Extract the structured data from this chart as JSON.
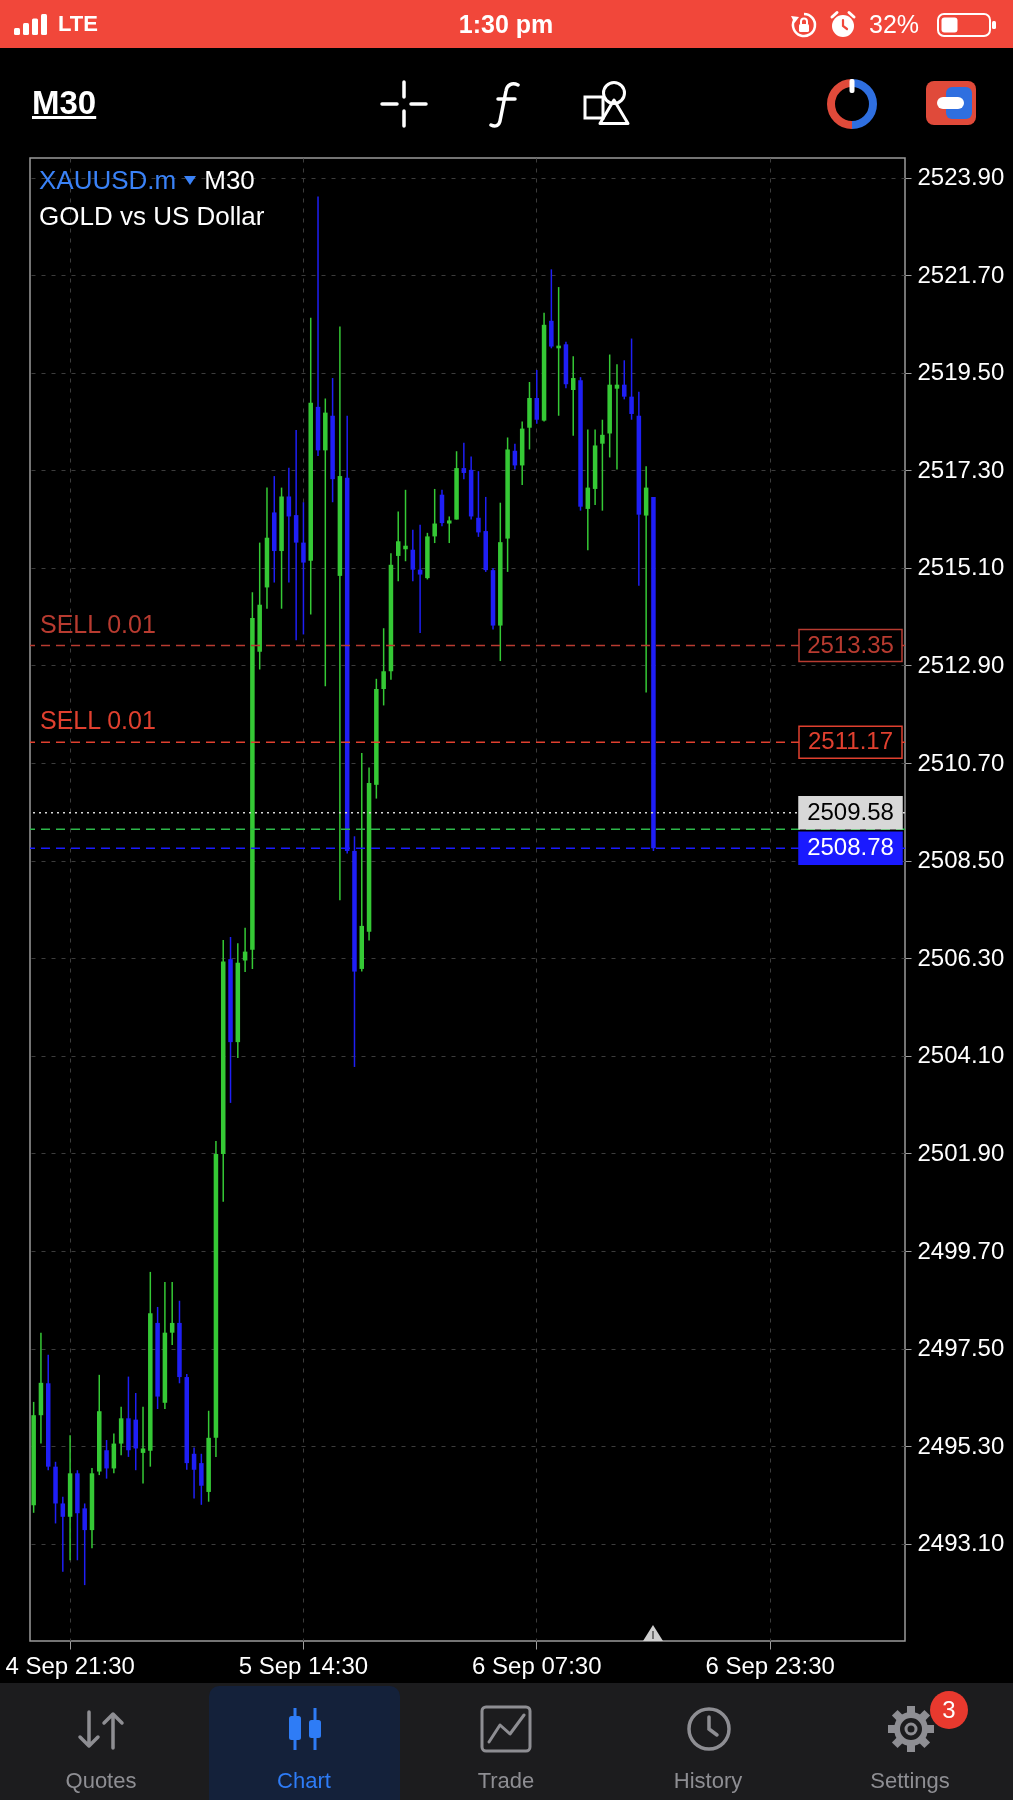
{
  "chart_data": {
    "type": "candlestick",
    "title": "XAUUSD.m",
    "subtitle": "GOLD vs US Dollar",
    "categories": [
      null,
      null,
      null,
      null,
      null,
      "4 Sep 21:30",
      null,
      null,
      null,
      null,
      null,
      null,
      null,
      null,
      null,
      null,
      null,
      null,
      null,
      null,
      null,
      null,
      null,
      null,
      null,
      null,
      null,
      null,
      null,
      null,
      null,
      null,
      null,
      null,
      null,
      null,
      null,
      "5 Sep 14:30",
      null,
      null,
      null,
      null,
      null,
      null,
      null,
      null,
      null,
      null,
      null,
      null,
      null,
      null,
      null,
      null,
      null,
      null,
      null,
      null,
      null,
      null,
      null,
      null,
      null,
      null,
      null,
      null,
      null,
      null,
      null,
      "6 Sep 07:30",
      null,
      null,
      null,
      null,
      null,
      null,
      null,
      null,
      null,
      null,
      null,
      null,
      null,
      null,
      null,
      null,
      null,
      null,
      null,
      null,
      null,
      null,
      null,
      null,
      null,
      null,
      null,
      null,
      null,
      null,
      null,
      "6 Sep 23:30",
      null,
      null,
      null,
      null,
      null,
      null,
      null,
      null,
      null,
      null,
      null,
      null,
      null,
      null,
      null,
      null,
      null,
      null
    ],
    "ohlc": [
      [
        2493.97,
        2496.3,
        2493.8,
        2496.0
      ],
      [
        2496.0,
        2497.86,
        2495.36,
        2496.73
      ],
      [
        2496.72,
        2497.36,
        2494.76,
        2494.84
      ],
      [
        2494.84,
        2494.95,
        2493.56,
        2494.01
      ],
      [
        2494.01,
        2494.16,
        2492.47,
        2493.71
      ],
      [
        2493.71,
        2495.55,
        2492.73,
        2494.69
      ],
      [
        2494.69,
        2494.76,
        2492.73,
        2493.79
      ],
      [
        2493.9,
        2494.01,
        2492.17,
        2493.41
      ],
      [
        2493.41,
        2494.81,
        2493.0,
        2494.69
      ],
      [
        2494.73,
        2496.91,
        2494.65,
        2496.09
      ],
      [
        2495.21,
        2495.44,
        2494.57,
        2494.8
      ],
      [
        2494.8,
        2495.59,
        2494.69,
        2495.36
      ],
      [
        2495.36,
        2496.19,
        2495.1,
        2495.93
      ],
      [
        2495.93,
        2496.87,
        2495.06,
        2495.21
      ],
      [
        2495.9,
        2496.5,
        2494.76,
        2495.25
      ],
      [
        2495.15,
        2496.19,
        2494.46,
        2495.25
      ],
      [
        2495.2,
        2499.23,
        2494.84,
        2498.3
      ],
      [
        2498.08,
        2498.44,
        2496.14,
        2496.42
      ],
      [
        2496.28,
        2499.0,
        2496.14,
        2497.86
      ],
      [
        2497.86,
        2499.0,
        2497.58,
        2498.08
      ],
      [
        2498.08,
        2498.58,
        2496.72,
        2496.86
      ],
      [
        2496.86,
        2496.93,
        2494.77,
        2494.92
      ],
      [
        2495.13,
        2495.27,
        2494.12,
        2494.77
      ],
      [
        2494.92,
        2495.13,
        2493.98,
        2494.41
      ],
      [
        2494.27,
        2496.1,
        2494.05,
        2495.49
      ],
      [
        2495.49,
        2502.18,
        2495.06,
        2501.89
      ],
      [
        2501.89,
        2506.71,
        2500.81,
        2506.23
      ],
      [
        2506.28,
        2506.78,
        2503.04,
        2504.41
      ],
      [
        2504.41,
        2506.64,
        2504.05,
        2506.2
      ],
      [
        2506.25,
        2506.99,
        2505.99,
        2506.45
      ],
      [
        2506.49,
        2514.55,
        2506.06,
        2513.97
      ],
      [
        2513.21,
        2515.67,
        2512.81,
        2514.27
      ],
      [
        2514.66,
        2516.91,
        2514.18,
        2515.78
      ],
      [
        2516.35,
        2517.17,
        2514.77,
        2515.48
      ],
      [
        2515.48,
        2516.91,
        2514.18,
        2516.71
      ],
      [
        2516.71,
        2517.36,
        2514.77,
        2516.26
      ],
      [
        2516.29,
        2518.21,
        2513.47,
        2515.67
      ],
      [
        2515.67,
        2516.58,
        2513.6,
        2515.22
      ],
      [
        2515.26,
        2520.74,
        2514.05,
        2518.82
      ],
      [
        2518.73,
        2523.47,
        2517.62,
        2517.75
      ],
      [
        2517.75,
        2518.92,
        2512.43,
        2518.6
      ],
      [
        2518.53,
        2519.38,
        2516.58,
        2517.1
      ],
      [
        2514.92,
        2520.54,
        2507.61,
        2517.17
      ],
      [
        2517.13,
        2518.53,
        2508.66,
        2508.72
      ],
      [
        2508.72,
        2509.05,
        2503.85,
        2506.0
      ],
      [
        2506.06,
        2510.93,
        2506.0,
        2507.03
      ],
      [
        2506.9,
        2510.6,
        2506.7,
        2510.25
      ],
      [
        2510.21,
        2512.6,
        2509.9,
        2512.37
      ],
      [
        2512.37,
        2513.74,
        2512.0,
        2512.77
      ],
      [
        2512.77,
        2515.43,
        2512.58,
        2515.17
      ],
      [
        2515.37,
        2516.37,
        2514.8,
        2515.7
      ],
      [
        2515.52,
        2516.86,
        2515.25,
        2515.6
      ],
      [
        2515.51,
        2515.96,
        2514.8,
        2515.06
      ],
      [
        2515.06,
        2516.07,
        2513.63,
        2514.95
      ],
      [
        2514.87,
        2515.89,
        2514.84,
        2515.81
      ],
      [
        2515.81,
        2516.88,
        2515.66,
        2516.1
      ],
      [
        2516.75,
        2516.86,
        2516.04,
        2516.11
      ],
      [
        2516.1,
        2516.26,
        2515.66,
        2516.17
      ],
      [
        2516.19,
        2517.73,
        2516.19,
        2517.35
      ],
      [
        2517.35,
        2517.92,
        2517.1,
        2517.24
      ],
      [
        2517.31,
        2517.61,
        2516.19,
        2516.26
      ],
      [
        2516.23,
        2517.28,
        2515.8,
        2515.9
      ],
      [
        2515.93,
        2516.7,
        2515.01,
        2515.05
      ],
      [
        2515.05,
        2515.1,
        2513.71,
        2513.8
      ],
      [
        2513.8,
        2516.57,
        2513.0,
        2515.68
      ],
      [
        2515.76,
        2518.04,
        2515.01,
        2517.77
      ],
      [
        2517.74,
        2517.9,
        2517.32,
        2517.41
      ],
      [
        2517.41,
        2518.4,
        2516.97,
        2518.24
      ],
      [
        2518.26,
        2519.29,
        2517.77,
        2518.93
      ],
      [
        2518.93,
        2519.56,
        2518.35,
        2518.44
      ],
      [
        2518.42,
        2520.85,
        2518.4,
        2520.58
      ],
      [
        2520.67,
        2521.83,
        2520.05,
        2520.09
      ],
      [
        2520.05,
        2521.43,
        2518.53,
        2520.11
      ],
      [
        2520.14,
        2520.2,
        2519.15,
        2519.24
      ],
      [
        2519.11,
        2519.87,
        2518.08,
        2519.38
      ],
      [
        2519.33,
        2519.4,
        2516.39,
        2516.48
      ],
      [
        2516.43,
        2518.22,
        2515.5,
        2516.91
      ],
      [
        2516.88,
        2518.22,
        2516.52,
        2517.86
      ],
      [
        2517.9,
        2518.44,
        2516.39,
        2518.1
      ],
      [
        2518.13,
        2519.91,
        2517.59,
        2519.23
      ],
      [
        2519.14,
        2519.69,
        2517.32,
        2519.23
      ],
      [
        2519.23,
        2519.78,
        2518.9,
        2518.96
      ],
      [
        2518.96,
        2520.27,
        2518.44,
        2518.57
      ],
      [
        2518.53,
        2519.07,
        2514.7,
        2516.3
      ],
      [
        2516.28,
        2517.39,
        2512.29,
        2516.91
      ],
      [
        2516.7,
        2516.7,
        2508.72,
        2508.78
      ],
      null,
      null,
      null,
      null,
      null,
      null,
      null,
      null,
      null,
      null,
      null,
      null,
      null,
      null,
      null,
      null,
      null,
      null,
      null,
      null,
      null,
      null,
      null,
      null,
      null,
      null,
      null,
      null,
      null,
      null,
      null,
      null,
      null,
      null
    ],
    "colors": [
      "#35c935",
      "#35c935",
      "#1f1ff5",
      "#1f1ff5",
      "#1f1ff5",
      "#35c935",
      "#1f1ff5",
      "#1f1ff5",
      "#35c935",
      "#35c935",
      "#1f1ff5",
      "#35c935",
      "#35c935",
      "#1f1ff5",
      "#1f1ff5",
      "#35c935",
      "#35c935",
      "#1f1ff5",
      "#35c935",
      "#35c935",
      "#1f1ff5",
      "#1f1ff5",
      "#1f1ff5",
      "#1f1ff5",
      "#35c935",
      "#35c935",
      "#35c935",
      "#1f1ff5",
      "#35c935",
      "#35c935",
      "#35c935",
      "#35c935",
      "#35c935",
      "#1f1ff5",
      "#35c935",
      "#1f1ff5",
      "#1f1ff5",
      "#1f1ff5",
      "#35c935",
      "#1f1ff5",
      "#35c935",
      "#1f1ff5",
      "#35c935",
      "#1f1ff5",
      "#1f1ff5",
      "#35c935",
      "#35c935",
      "#35c935",
      "#35c935",
      "#35c935",
      "#35c935",
      "#35c935",
      "#1f1ff5",
      "#1f1ff5",
      "#35c935",
      "#35c935",
      "#1f1ff5",
      "#35c935",
      "#35c935",
      "#1f1ff5",
      "#1f1ff5",
      "#1f1ff5",
      "#1f1ff5",
      "#1f1ff5",
      "#35c935",
      "#35c935",
      "#1f1ff5",
      "#35c935",
      "#35c935",
      "#1f1ff5",
      "#35c935",
      "#1f1ff5",
      "#35c935",
      "#1f1ff5",
      "#35c935",
      "#1f1ff5",
      "#35c935",
      "#35c935",
      "#35c935",
      "#35c935",
      "#35c935",
      "#1f1ff5",
      "#1f1ff5",
      "#1f1ff5",
      "#35c935",
      "#1f1ff5",
      null,
      null,
      null,
      null,
      null,
      null,
      null,
      null,
      null,
      null,
      null,
      null,
      null,
      null,
      null,
      null,
      null,
      null,
      null,
      null,
      null,
      null,
      null,
      null,
      null,
      null,
      null,
      null,
      null,
      null,
      null,
      null,
      null,
      null
    ],
    "ylim": [
      2490.91,
      2524.34
    ],
    "yticks": [
      {
        "value": 2523.9,
        "label": "2523.90"
      },
      {
        "value": 2521.7,
        "label": "2521.70"
      },
      {
        "value": 2519.5,
        "label": "2519.50"
      },
      {
        "value": 2517.3,
        "label": "2517.30"
      },
      {
        "value": 2515.1,
        "label": "2515.10"
      },
      {
        "value": 2512.9,
        "label": "2512.90"
      },
      {
        "value": 2510.7,
        "label": "2510.70"
      },
      {
        "value": 2508.5,
        "label": "2508.50"
      },
      {
        "value": 2506.3,
        "label": "2506.30"
      },
      {
        "value": 2504.1,
        "label": "2504.10"
      },
      {
        "value": 2501.9,
        "label": "2501.90"
      },
      {
        "value": 2499.7,
        "label": "2499.70"
      },
      {
        "value": 2497.5,
        "label": "2497.50"
      },
      {
        "value": 2495.3,
        "label": "2495.30"
      },
      {
        "value": 2493.1,
        "label": "2493.10"
      }
    ],
    "grid": true,
    "ref_lines": [
      {
        "axis": "y",
        "value": 2513.35,
        "label": "SELL 0.01",
        "color": "#b83b30",
        "line_style": "dashed"
      },
      {
        "axis": "y",
        "value": 2511.17,
        "label": "SELL 0.01",
        "color": "#e0402f",
        "line_style": "dashed"
      },
      {
        "axis": "y",
        "value": 2509.58,
        "color": "#d8d8d8",
        "line_style": "dotted"
      },
      {
        "axis": "y",
        "value": 2509.21,
        "color": "#2db84a",
        "line_style": "dashed"
      },
      {
        "axis": "y",
        "value": 2508.78,
        "color": "#1a1aff",
        "line_style": "dashed"
      }
    ],
    "annotations": [
      "M30",
      "M30",
      "LTE",
      "1:30 pm",
      "32%",
      "Quotes",
      "Chart",
      "Trade",
      "History",
      "Settings",
      "3",
      {
        "text": "2513.35",
        "y": 2513.35
      },
      {
        "text": "2511.17",
        "y": 2511.17
      },
      {
        "text": "2509.58",
        "y": 2509.58
      },
      {
        "text": "2508.78",
        "y": 2508.78
      }
    ]
  }
}
